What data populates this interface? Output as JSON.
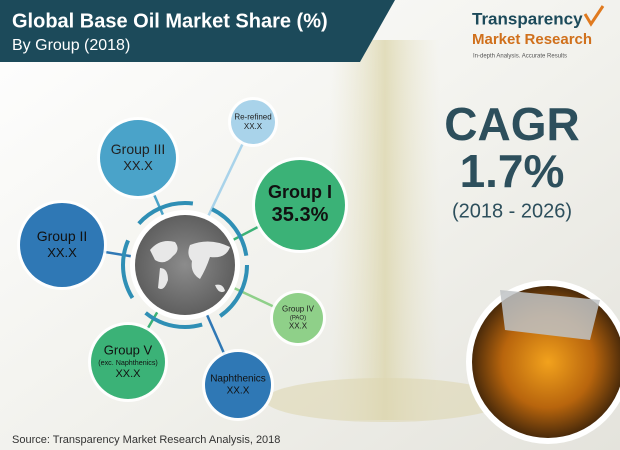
{
  "header": {
    "title": "Global Base Oil Market Share (%)",
    "subtitle": "By Group (2018)"
  },
  "logo": {
    "name": "Transparency",
    "name_2": "Market Research",
    "tagline": "In-depth Analysis. Accurate Results"
  },
  "nodes": [
    {
      "label": "Re-refined",
      "value": "XX.X"
    },
    {
      "label": "Group III",
      "value": "XX.X"
    },
    {
      "label": "Group I",
      "value": "35.3%"
    },
    {
      "label": "Group II",
      "value": "XX.X"
    },
    {
      "label": "Group IV",
      "sublabel": "(PAO)",
      "value": "XX.X"
    },
    {
      "label": "Group V",
      "sublabel": "(exc. Naphthenics)",
      "value": "XX.X"
    },
    {
      "label": "Naphthenics",
      "value": "XX.X"
    }
  ],
  "cagr": {
    "label": "CAGR",
    "value": "1.7%",
    "period": "(2018 - 2026)"
  },
  "source": "Source: Transparency Market Research Analysis, 2018"
}
